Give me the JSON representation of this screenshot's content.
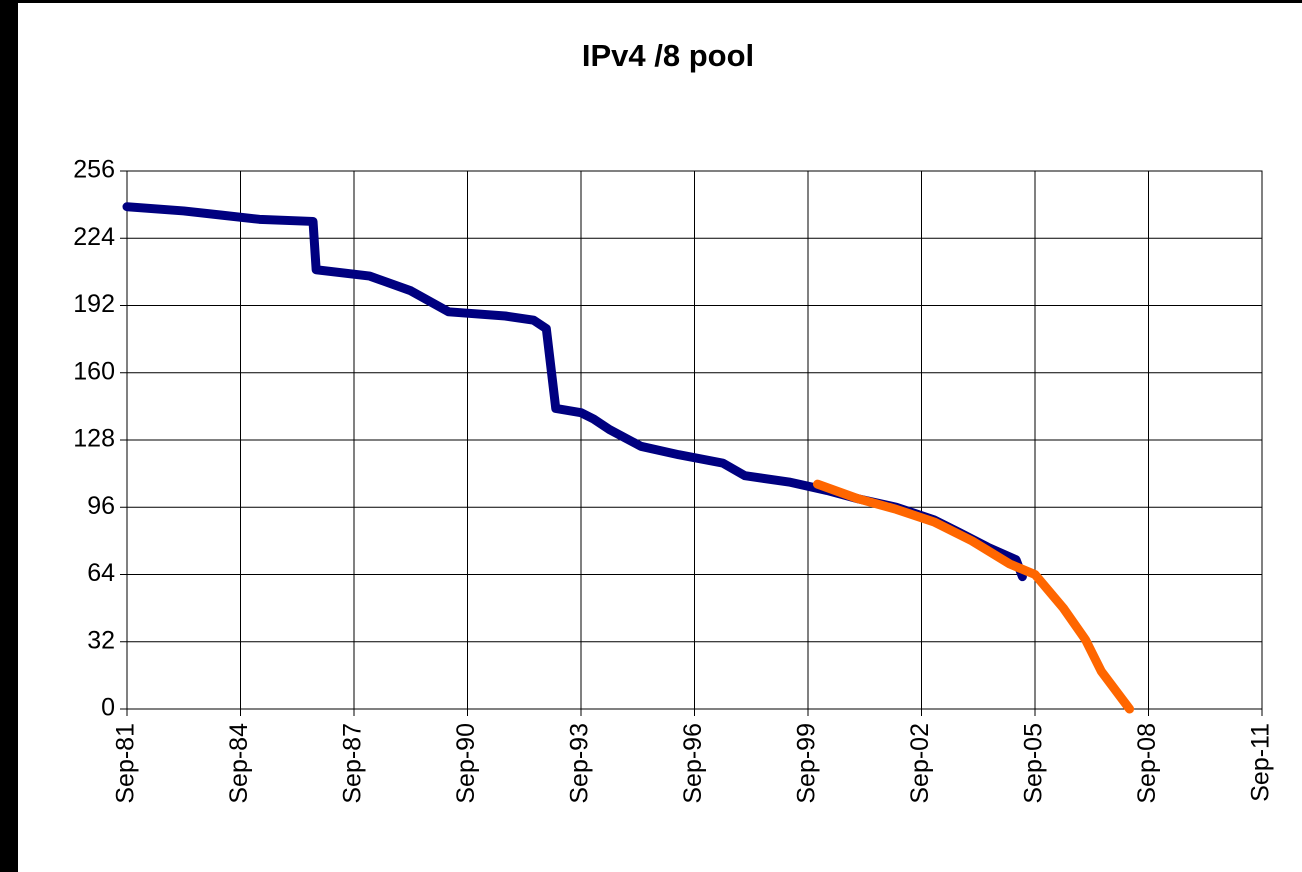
{
  "chart_data": {
    "type": "line",
    "title": "IPv4 /8 pool",
    "series": [
      {
        "color": "#000080",
        "x": [
          "1981-09",
          "1983-03",
          "1984-03",
          "1985-03",
          "1986-08",
          "1986-09",
          "1988-02",
          "1989-03",
          "1990-03",
          "1991-09",
          "1992-06",
          "1992-10",
          "1993-01",
          "1993-09",
          "1994-01",
          "1994-06",
          "1995-04",
          "1996-04",
          "1997-06",
          "1998-01",
          "1999-03",
          "2000-03",
          "2001-01",
          "2002-01",
          "2003-01",
          "2003-09",
          "2004-06",
          "2005-03",
          "2005-05"
        ],
        "values": [
          239,
          237,
          235,
          233,
          232,
          209,
          206,
          199,
          189,
          187,
          185,
          181,
          143,
          141,
          138,
          133,
          125,
          121,
          117,
          111,
          108,
          104,
          100,
          96,
          90,
          84,
          77,
          71,
          63
        ]
      },
      {
        "color": "#ff6600",
        "x": [
          "1999-12",
          "2001-01",
          "2002-01",
          "2003-01",
          "2004-01",
          "2005-01",
          "2005-09",
          "2006-06",
          "2007-01",
          "2007-06",
          "2008-03"
        ],
        "values": [
          107,
          100,
          95,
          89,
          80,
          69,
          64,
          48,
          33,
          18,
          0
        ]
      }
    ],
    "xlim": [
      "1981-09",
      "2011-09"
    ],
    "xticks": [
      {
        "value": "1981-09",
        "label": "Sep-81"
      },
      {
        "value": "1984-09",
        "label": "Sep-84"
      },
      {
        "value": "1987-09",
        "label": "Sep-87"
      },
      {
        "value": "1990-09",
        "label": "Sep-90"
      },
      {
        "value": "1993-09",
        "label": "Sep-93"
      },
      {
        "value": "1996-09",
        "label": "Sep-96"
      },
      {
        "value": "1999-09",
        "label": "Sep-99"
      },
      {
        "value": "2002-09",
        "label": "Sep-02"
      },
      {
        "value": "2005-09",
        "label": "Sep-05"
      },
      {
        "value": "2008-09",
        "label": "Sep-08"
      },
      {
        "value": "2011-09",
        "label": "Sep-11"
      }
    ],
    "ylim": [
      0,
      256
    ],
    "yticks": [
      0,
      32,
      64,
      96,
      128,
      160,
      192,
      224,
      256
    ],
    "grid": true
  }
}
